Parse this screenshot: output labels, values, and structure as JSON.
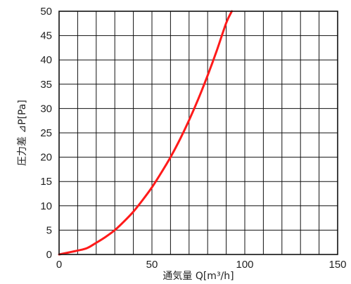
{
  "chart_data": {
    "type": "line",
    "title": "",
    "xlabel": "通気量 Q[m³/h]",
    "ylabel": "圧力差 ⊿P[Pa]",
    "xlim": [
      0,
      150
    ],
    "ylim": [
      0,
      50
    ],
    "x_ticks": [
      0,
      50,
      100,
      150
    ],
    "x_tick_labels": [
      "0",
      "50",
      "100",
      "150"
    ],
    "y_ticks": [
      0,
      5,
      10,
      15,
      20,
      25,
      30,
      35,
      40,
      45,
      50
    ],
    "y_tick_labels": [
      "0",
      "5",
      "10",
      "15",
      "20",
      "25",
      "30",
      "35",
      "40",
      "45",
      "50"
    ],
    "x_grid_step": 10,
    "y_grid_step": 5,
    "grid": true,
    "legend": "none",
    "series": [
      {
        "color": "#ff1a1a",
        "x": [
          0,
          5,
          10,
          15,
          20,
          25,
          30,
          35,
          40,
          45,
          50,
          55,
          60,
          65,
          70,
          75,
          80,
          85,
          90,
          93
        ],
        "y": [
          0,
          0.4,
          0.8,
          1.3,
          2.4,
          3.6,
          5.0,
          6.8,
          8.8,
          11.2,
          13.8,
          16.8,
          20.0,
          23.6,
          27.6,
          32.0,
          36.8,
          42.0,
          47.6,
          50.0
        ]
      }
    ]
  }
}
